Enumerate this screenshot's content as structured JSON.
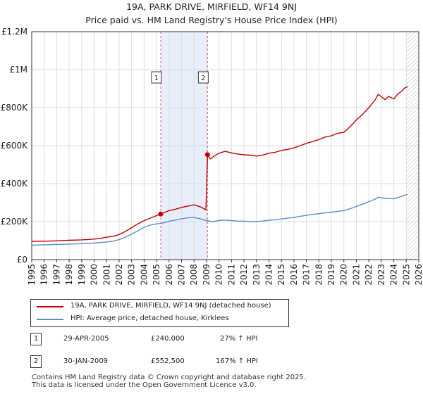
{
  "header": {
    "title": "19A, PARK DRIVE, MIRFIELD, WF14 9NJ",
    "subtitle": "Price paid vs. HM Land Registry's House Price Index (HPI)"
  },
  "legend": {
    "items": [
      {
        "label": "19A, PARK DRIVE, MIRFIELD, WF14 9NJ (detached house)",
        "color": "#c00000"
      },
      {
        "label": "HPI: Average price, detached house, Kirklees",
        "color": "#5b8cc8"
      }
    ]
  },
  "sales": [
    {
      "marker": "1",
      "date": "29-APR-2005",
      "price": "£240,000",
      "hpi_change": "27% ↑ HPI"
    },
    {
      "marker": "2",
      "date": "30-JAN-2009",
      "price": "£552,500",
      "hpi_change": "167% ↑ HPI"
    }
  ],
  "footer": {
    "line1": "Contains HM Land Registry data © Crown copyright and database right 2025.",
    "line2": "This data is licensed under the Open Government Licence v3.0."
  },
  "chart_data": {
    "type": "line",
    "title": "19A, PARK DRIVE, MIRFIELD, WF14 9NJ",
    "subtitle": "Price paid vs. HM Land Registry's House Price Index (HPI)",
    "xlabel": "",
    "ylabel": "",
    "xlim": [
      1995,
      2026
    ],
    "ylim": [
      0,
      1200000
    ],
    "x_ticks": [
      "1995",
      "1996",
      "1997",
      "1998",
      "1999",
      "2000",
      "2001",
      "2002",
      "2003",
      "2004",
      "2005",
      "2006",
      "2007",
      "2008",
      "2009",
      "2010",
      "2011",
      "2012",
      "2013",
      "2014",
      "2015",
      "2016",
      "2017",
      "2018",
      "2019",
      "2020",
      "2021",
      "2022",
      "2023",
      "2024",
      "2025",
      "2026"
    ],
    "y_ticks": [
      {
        "value": 0,
        "label": "£0"
      },
      {
        "value": 200000,
        "label": "£200K"
      },
      {
        "value": 400000,
        "label": "£400K"
      },
      {
        "value": 600000,
        "label": "£600K"
      },
      {
        "value": 800000,
        "label": "£800K"
      },
      {
        "value": 1000000,
        "label": "£1M"
      },
      {
        "value": 1200000,
        "label": "£1.2M"
      }
    ],
    "grid": true,
    "shaded_range": [
      2005.33,
      2009.08
    ],
    "hatched_from": 2025.0,
    "sale_points": [
      {
        "marker": "1",
        "x": 2005.33,
        "y": 240000
      },
      {
        "marker": "2",
        "x": 2009.08,
        "y": 552500
      }
    ],
    "series": [
      {
        "name": "19A, PARK DRIVE, MIRFIELD, WF14 9NJ (detached house)",
        "color": "#c00000",
        "points": [
          [
            1995.0,
            96000
          ],
          [
            1996.0,
            97000
          ],
          [
            1997.0,
            99000
          ],
          [
            1998.0,
            102000
          ],
          [
            1999.0,
            104000
          ],
          [
            2000.0,
            108000
          ],
          [
            2000.5,
            112000
          ],
          [
            2001.0,
            118000
          ],
          [
            2001.5,
            122000
          ],
          [
            2002.0,
            132000
          ],
          [
            2002.5,
            148000
          ],
          [
            2003.0,
            168000
          ],
          [
            2003.5,
            188000
          ],
          [
            2004.0,
            205000
          ],
          [
            2004.5,
            218000
          ],
          [
            2005.0,
            232000
          ],
          [
            2005.33,
            240000
          ],
          [
            2005.7,
            250000
          ],
          [
            2006.0,
            258000
          ],
          [
            2006.5,
            265000
          ],
          [
            2007.0,
            275000
          ],
          [
            2007.5,
            282000
          ],
          [
            2008.0,
            288000
          ],
          [
            2008.5,
            278000
          ],
          [
            2008.95,
            262000
          ],
          [
            2009.08,
            552500
          ],
          [
            2009.3,
            530000
          ],
          [
            2009.6,
            545000
          ],
          [
            2010.0,
            560000
          ],
          [
            2010.5,
            570000
          ],
          [
            2011.0,
            562000
          ],
          [
            2011.5,
            556000
          ],
          [
            2012.0,
            552000
          ],
          [
            2012.5,
            550000
          ],
          [
            2013.0,
            545000
          ],
          [
            2013.5,
            550000
          ],
          [
            2014.0,
            560000
          ],
          [
            2014.5,
            565000
          ],
          [
            2015.0,
            575000
          ],
          [
            2015.5,
            580000
          ],
          [
            2016.0,
            588000
          ],
          [
            2016.5,
            600000
          ],
          [
            2017.0,
            612000
          ],
          [
            2017.5,
            622000
          ],
          [
            2018.0,
            632000
          ],
          [
            2018.5,
            645000
          ],
          [
            2019.0,
            652000
          ],
          [
            2019.5,
            665000
          ],
          [
            2020.0,
            670000
          ],
          [
            2020.5,
            700000
          ],
          [
            2021.0,
            735000
          ],
          [
            2021.5,
            765000
          ],
          [
            2022.0,
            800000
          ],
          [
            2022.5,
            840000
          ],
          [
            2022.75,
            870000
          ],
          [
            2023.0,
            858000
          ],
          [
            2023.3,
            842000
          ],
          [
            2023.6,
            860000
          ],
          [
            2024.0,
            845000
          ],
          [
            2024.3,
            870000
          ],
          [
            2024.6,
            885000
          ],
          [
            2024.9,
            905000
          ],
          [
            2025.1,
            910000
          ]
        ]
      },
      {
        "name": "HPI: Average price, detached house, Kirklees",
        "color": "#5b8cc8",
        "points": [
          [
            1995.0,
            76000
          ],
          [
            1996.0,
            78000
          ],
          [
            1997.0,
            80000
          ],
          [
            1998.0,
            82000
          ],
          [
            1999.0,
            84000
          ],
          [
            2000.0,
            87000
          ],
          [
            2000.5,
            90000
          ],
          [
            2001.0,
            93000
          ],
          [
            2001.5,
            97000
          ],
          [
            2002.0,
            105000
          ],
          [
            2002.5,
            118000
          ],
          [
            2003.0,
            135000
          ],
          [
            2003.5,
            152000
          ],
          [
            2004.0,
            170000
          ],
          [
            2004.5,
            182000
          ],
          [
            2005.0,
            188000
          ],
          [
            2005.33,
            190000
          ],
          [
            2005.7,
            196000
          ],
          [
            2006.0,
            202000
          ],
          [
            2006.5,
            208000
          ],
          [
            2007.0,
            215000
          ],
          [
            2007.5,
            220000
          ],
          [
            2008.0,
            222000
          ],
          [
            2008.5,
            215000
          ],
          [
            2009.0,
            205000
          ],
          [
            2009.5,
            200000
          ],
          [
            2010.0,
            206000
          ],
          [
            2010.5,
            208000
          ],
          [
            2011.0,
            205000
          ],
          [
            2011.5,
            203000
          ],
          [
            2012.0,
            202000
          ],
          [
            2012.5,
            201000
          ],
          [
            2013.0,
            200000
          ],
          [
            2013.5,
            203000
          ],
          [
            2014.0,
            207000
          ],
          [
            2014.5,
            210000
          ],
          [
            2015.0,
            214000
          ],
          [
            2015.5,
            218000
          ],
          [
            2016.0,
            222000
          ],
          [
            2016.5,
            228000
          ],
          [
            2017.0,
            233000
          ],
          [
            2017.5,
            238000
          ],
          [
            2018.0,
            242000
          ],
          [
            2018.5,
            246000
          ],
          [
            2019.0,
            250000
          ],
          [
            2019.5,
            254000
          ],
          [
            2020.0,
            258000
          ],
          [
            2020.5,
            268000
          ],
          [
            2021.0,
            280000
          ],
          [
            2021.5,
            292000
          ],
          [
            2022.0,
            305000
          ],
          [
            2022.5,
            318000
          ],
          [
            2022.75,
            328000
          ],
          [
            2023.0,
            326000
          ],
          [
            2023.5,
            322000
          ],
          [
            2024.0,
            320000
          ],
          [
            2024.5,
            330000
          ],
          [
            2024.9,
            340000
          ],
          [
            2025.1,
            342000
          ]
        ]
      }
    ]
  }
}
